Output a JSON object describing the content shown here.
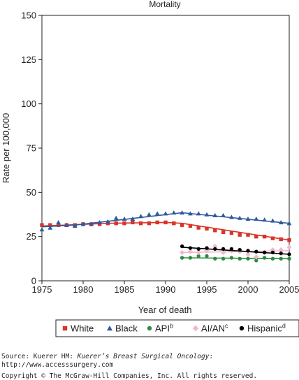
{
  "chart_data": {
    "type": "line",
    "title": "Mortality",
    "xlabel": "Year of death",
    "ylabel": "Rate per 100,000",
    "xlim": [
      1975,
      2005
    ],
    "ylim": [
      0,
      150
    ],
    "x_ticks": [
      "1975",
      "1980",
      "1985",
      "1990",
      "1995",
      "2000",
      "2005"
    ],
    "y_ticks": [
      "0",
      "25",
      "50",
      "75",
      "100",
      "125",
      "150"
    ],
    "grid": false,
    "legend_position": "bottom",
    "legend": [
      {
        "label": "White",
        "sup": "",
        "color": "#d9332a",
        "marker": "square"
      },
      {
        "label": "Black",
        "sup": "",
        "color": "#2e5a9c",
        "marker": "triangle"
      },
      {
        "label": "API",
        "sup": "b",
        "color": "#2e8b3e",
        "marker": "circle"
      },
      {
        "label": "AI/AN",
        "sup": "c",
        "color": "#f2b8cf",
        "marker": "diamond"
      },
      {
        "label": "Hispanic",
        "sup": "d",
        "color": "#000000",
        "marker": "circle"
      }
    ],
    "series": [
      {
        "name": "White",
        "color": "#d9332a",
        "marker": "square",
        "x": [
          1975,
          1976,
          1977,
          1978,
          1979,
          1980,
          1981,
          1982,
          1983,
          1984,
          1985,
          1986,
          1987,
          1988,
          1989,
          1990,
          1991,
          1992,
          1993,
          1994,
          1995,
          1996,
          1997,
          1998,
          1999,
          2000,
          2001,
          2002,
          2003,
          2004,
          2005
        ],
        "points": [
          31.5,
          31.5,
          31.5,
          31.5,
          31.5,
          32,
          32,
          32,
          32.5,
          32.5,
          32.5,
          33,
          32.5,
          32.5,
          33,
          33,
          32.5,
          31.5,
          31,
          30,
          29.5,
          28.5,
          27.5,
          27,
          26,
          26,
          25,
          25,
          24,
          23.5,
          23
        ],
        "trend_x": [
          1975,
          1983,
          1990,
          1992,
          2005
        ],
        "trend_y": [
          31,
          32.5,
          33,
          32.5,
          23
        ]
      },
      {
        "name": "Black",
        "color": "#2e5a9c",
        "marker": "triangle",
        "x": [
          1975,
          1976,
          1977,
          1978,
          1979,
          1980,
          1981,
          1982,
          1983,
          1984,
          1985,
          1986,
          1987,
          1988,
          1989,
          1990,
          1991,
          1992,
          1993,
          1994,
          1995,
          1996,
          1997,
          1998,
          1999,
          2000,
          2001,
          2002,
          2003,
          2004,
          2005
        ],
        "points": [
          29,
          30,
          33,
          31.5,
          31,
          32,
          32,
          33,
          33.5,
          35.5,
          35,
          35,
          36.5,
          37.5,
          38,
          38,
          38.5,
          38.5,
          38,
          38,
          37.5,
          37,
          37,
          36,
          35.5,
          35,
          35,
          34.5,
          34,
          33,
          32.5
        ],
        "trend_x": [
          1975,
          1979,
          1992,
          2005
        ],
        "trend_y": [
          30.5,
          31.5,
          38.5,
          32.5
        ]
      },
      {
        "name": "API",
        "color": "#2e8b3e",
        "marker": "circle",
        "x": [
          1992,
          1993,
          1994,
          1995,
          1996,
          1997,
          1998,
          1999,
          2000,
          2001,
          2002,
          2003,
          2004,
          2005
        ],
        "points": [
          13,
          13,
          14,
          14,
          12.5,
          12.5,
          13,
          12.5,
          12.5,
          11.5,
          13,
          12.5,
          12.5,
          12.5
        ],
        "trend_x": [
          1992,
          2005
        ],
        "trend_y": [
          13,
          12.5
        ]
      },
      {
        "name": "AI/AN",
        "color": "#f2b8cf",
        "marker": "diamond",
        "x": [
          1992,
          1993,
          1994,
          1995,
          1996,
          1997,
          1998,
          1999,
          2000,
          2001,
          2002,
          2003,
          2004,
          2005
        ],
        "points": [
          16,
          16.5,
          16,
          17,
          19.5,
          16,
          17,
          16.5,
          15,
          13.5,
          16,
          17.5,
          17.5,
          19
        ],
        "trend_x": [
          1992,
          2005
        ],
        "trend_y": [
          16,
          17
        ]
      },
      {
        "name": "Hispanic",
        "color": "#000000",
        "marker": "circle",
        "x": [
          1992,
          1993,
          1994,
          1995,
          1996,
          1997,
          1998,
          1999,
          2000,
          2001,
          2002,
          2003,
          2004,
          2005
        ],
        "points": [
          19.5,
          18.5,
          18,
          18.5,
          18,
          18,
          18,
          17.5,
          17,
          16.5,
          16,
          16,
          15.5,
          15
        ],
        "trend_x": [
          1992,
          2005
        ],
        "trend_y": [
          19,
          15
        ]
      }
    ]
  },
  "source": {
    "prefix": "Source: Kuerer HM: ",
    "book": "Kuerer’s Breast Surgical Oncology",
    "suffix": ":",
    "url": "http://www.accesssurgery.com",
    "copyright": "Copyright © The McGraw-Hill Companies, Inc. All rights reserved."
  }
}
